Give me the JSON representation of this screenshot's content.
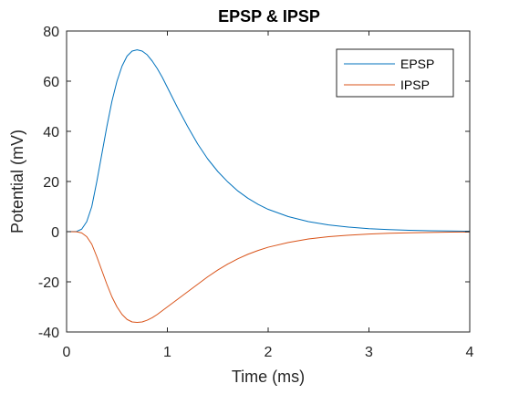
{
  "chart_data": {
    "type": "line",
    "title": "EPSP & IPSP",
    "xlabel": "Time (ms)",
    "ylabel": "Potential (mV)",
    "xlim": [
      0,
      4
    ],
    "ylim": [
      -40,
      80
    ],
    "xticks": [
      0,
      1,
      2,
      3,
      4
    ],
    "xtick_labels": [
      "0",
      "1",
      "2",
      "3",
      "4"
    ],
    "yticks": [
      -40,
      -20,
      0,
      20,
      40,
      60,
      80
    ],
    "ytick_labels": [
      "-40",
      "-20",
      "0",
      "20",
      "40",
      "60",
      "80"
    ],
    "grid": false,
    "legend_position": "top-right",
    "series": [
      {
        "name": "EPSP",
        "color": "#0072BD",
        "x": [
          0.0,
          0.1,
          0.15,
          0.2,
          0.25,
          0.3,
          0.35,
          0.4,
          0.45,
          0.5,
          0.55,
          0.6,
          0.65,
          0.7,
          0.75,
          0.8,
          0.85,
          0.9,
          0.95,
          1.0,
          1.1,
          1.2,
          1.3,
          1.4,
          1.5,
          1.6,
          1.7,
          1.8,
          1.9,
          2.0,
          2.2,
          2.4,
          2.6,
          2.8,
          3.0,
          3.2,
          3.4,
          3.6,
          3.8,
          4.0
        ],
        "y": [
          0,
          0.1,
          1,
          4,
          10,
          20,
          31,
          42,
          52,
          60,
          66,
          70,
          72,
          72.5,
          72,
          70.5,
          68,
          65,
          61.5,
          57.5,
          49.5,
          42,
          35,
          29,
          24,
          19.8,
          16.2,
          13.3,
          10.9,
          8.9,
          6.0,
          4.0,
          2.7,
          1.8,
          1.2,
          0.8,
          0.55,
          0.37,
          0.25,
          0.17
        ]
      },
      {
        "name": "IPSP",
        "color": "#D95319",
        "x": [
          0.0,
          0.1,
          0.15,
          0.2,
          0.25,
          0.3,
          0.35,
          0.4,
          0.45,
          0.5,
          0.55,
          0.6,
          0.65,
          0.7,
          0.75,
          0.8,
          0.85,
          0.9,
          0.95,
          1.0,
          1.1,
          1.2,
          1.3,
          1.4,
          1.5,
          1.6,
          1.7,
          1.8,
          1.9,
          2.0,
          2.2,
          2.4,
          2.6,
          2.8,
          3.0,
          3.2,
          3.4,
          3.6,
          3.8,
          4.0
        ],
        "y": [
          0,
          -0.05,
          -0.5,
          -2,
          -5,
          -10,
          -15.5,
          -21,
          -26,
          -30,
          -33,
          -35,
          -36,
          -36.2,
          -36,
          -35.3,
          -34.3,
          -33,
          -31.5,
          -30,
          -27,
          -24,
          -21,
          -18,
          -15.3,
          -12.9,
          -10.8,
          -9.0,
          -7.5,
          -6.2,
          -4.3,
          -2.9,
          -2.0,
          -1.4,
          -0.95,
          -0.65,
          -0.45,
          -0.3,
          -0.2,
          -0.14
        ]
      }
    ]
  }
}
